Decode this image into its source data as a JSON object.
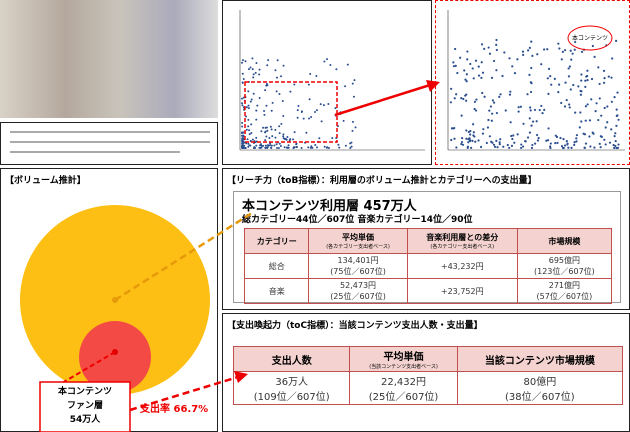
{
  "scatter_label": "本コンテンツ",
  "volume": {
    "title": "【ボリューム推計】",
    "fan": [
      "本コンテンツ",
      "ファン層",
      "54万人"
    ],
    "rate": "支出率 66.7%"
  },
  "reach": {
    "title": "【リーチ力（toB指標）：利用層のボリューム推計とカテゴリーへの支出量】",
    "headline": "本コンテンツ利用層 457万人",
    "subline": "総カテゴリー44位／607位 音楽カテゴリー14位／90位",
    "header": [
      {
        "label": "カテゴリー"
      },
      {
        "label": "平均単価",
        "note": "(各カテゴリー支出者ベース)"
      },
      {
        "label": "音楽利用層との差分",
        "note": "(各カテゴリー支出者ベース)"
      },
      {
        "label": "市場規模"
      }
    ],
    "rows": [
      [
        [
          "総合"
        ],
        [
          "134,401円",
          "(75位／607位)"
        ],
        [
          "+43,232円"
        ],
        [
          "695億円",
          "(123位／607位)"
        ]
      ],
      [
        [
          "音楽"
        ],
        [
          "52,473円",
          "(25位／607位)"
        ],
        [
          "+23,752円"
        ],
        [
          "271億円",
          "(57位／607位)"
        ]
      ]
    ]
  },
  "spend": {
    "title": "【支出喚起力（toC指標）：当該コンテンツ支出人数・支出量】",
    "header": [
      {
        "label": "支出人数"
      },
      {
        "label": "平均単価",
        "note": "(当該コンテンツ支出者ベース)"
      },
      {
        "label": "当該コンテンツ市場規模"
      }
    ],
    "row": [
      [
        "36万人",
        "(109位／607位)"
      ],
      [
        "22,432円",
        "(25位／607位)"
      ],
      [
        "80億円",
        "(38位／607位)"
      ]
    ]
  }
}
